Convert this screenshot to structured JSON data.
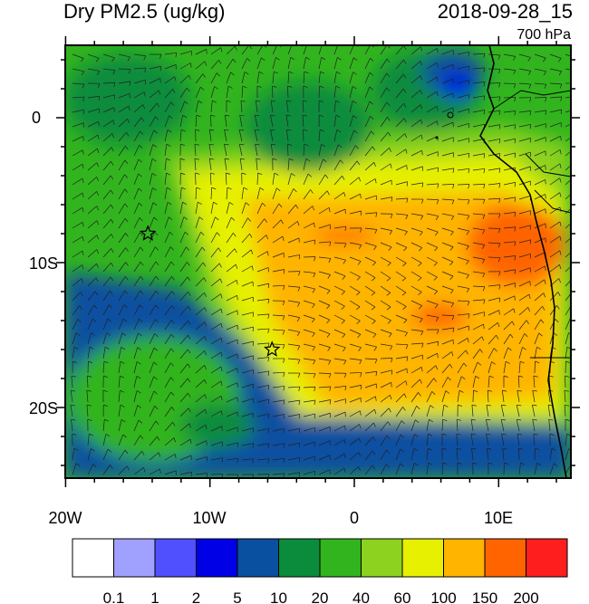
{
  "header": {
    "title": "Dry PM2.5 (ug/kg)",
    "datetime": "2018-09-28_15",
    "level": "700 hPa"
  },
  "axes": {
    "x_tick_labels": [
      "20W",
      "10W",
      "0",
      "10E"
    ],
    "y_tick_labels": [
      "0",
      "10S",
      "20S"
    ]
  },
  "colorbar": {
    "labels": [
      "0.1",
      "1",
      "2",
      "5",
      "10",
      "20",
      "40",
      "60",
      "100",
      "150",
      "200"
    ],
    "colors": [
      "#ffffff",
      "#a0a0ff",
      "#5050ff",
      "#0000e6",
      "#0a50a0",
      "#0a8c3c",
      "#32b41e",
      "#8cd21e",
      "#e6f000",
      "#ffb400",
      "#ff6400",
      "#ff1e1e"
    ]
  },
  "markers": [
    {
      "name": "station-star-1",
      "lon": -14.3,
      "lat": -8.0
    },
    {
      "name": "station-star-2",
      "lon": -5.7,
      "lat": -16.0
    }
  ]
}
